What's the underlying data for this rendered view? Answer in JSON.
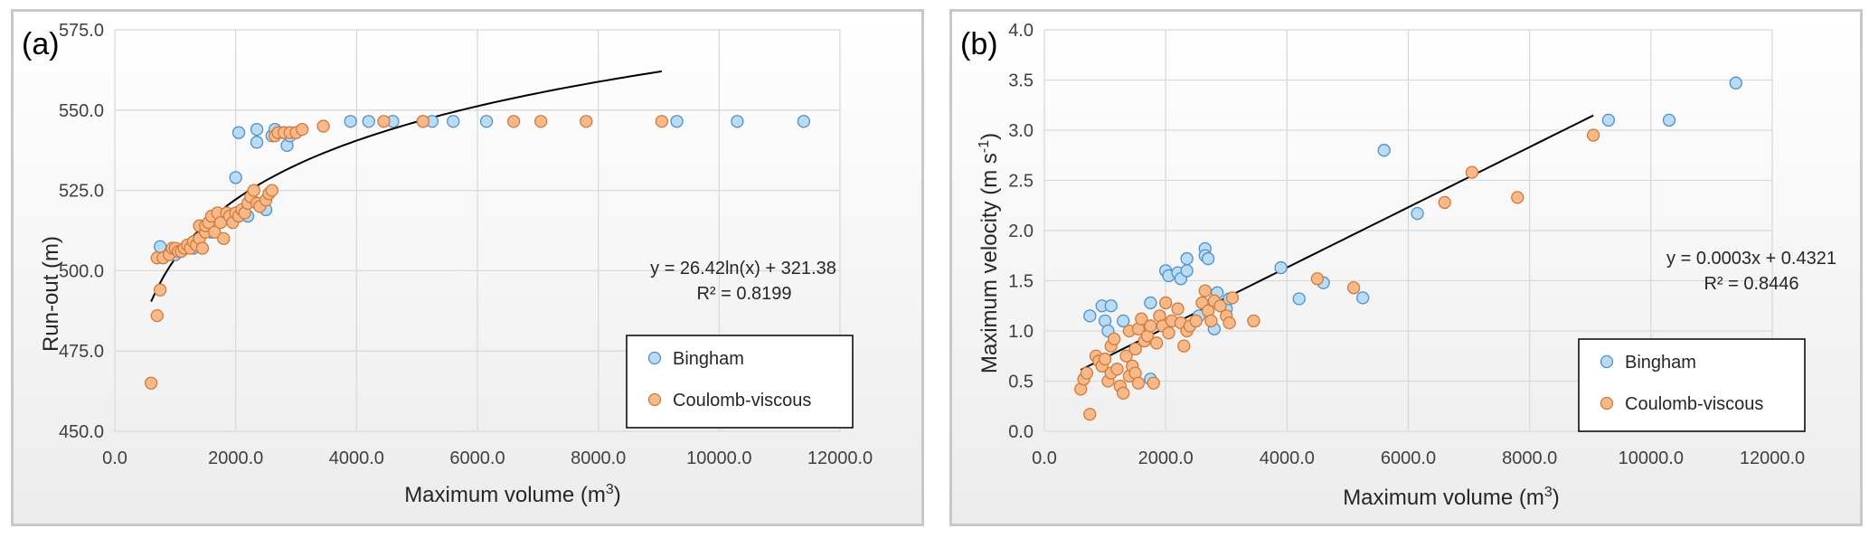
{
  "colors": {
    "bingham_fill": "#b9dcf4",
    "bingham_stroke": "#4f90c8",
    "coulomb_fill": "#f7b98a",
    "coulomb_stroke": "#d07a3a",
    "grid": "#d9d9d9",
    "frame": "#bfbfbf",
    "trend": "#000000"
  },
  "chart_data": [
    {
      "type": "scatter",
      "panel_label": "(a)",
      "xlabel": "Maximum volume (m",
      "xlabel_sup": "3",
      "xlabel_end": ")",
      "ylabel": "Run-out (m)",
      "xlim": [
        0,
        12000
      ],
      "ylim": [
        450,
        575
      ],
      "xticks": [
        0,
        2000,
        4000,
        6000,
        8000,
        10000,
        12000
      ],
      "xtick_labels": [
        "0.0",
        "2000.0",
        "4000.0",
        "6000.0",
        "8000.0",
        "10000.0",
        "12000.0"
      ],
      "yticks": [
        450,
        475,
        500,
        525,
        550,
        575
      ],
      "ytick_labels": [
        "450.0",
        "475.0",
        "500.0",
        "525.0",
        "550.0",
        "575.0"
      ],
      "legend": [
        "Bingham",
        "Coulomb-viscous"
      ],
      "legend_position": "bottom-right",
      "equation": "y = 26.42ln(x) + 321.38",
      "r2": "R² = 0.8199",
      "trendline": {
        "kind": "log",
        "a": 26.42,
        "b": 321.38,
        "x_range": [
          600,
          9050
        ]
      },
      "series": [
        {
          "name": "Bingham",
          "points": [
            [
              750,
              507.5
            ],
            [
              1000,
              505
            ],
            [
              1300,
              507
            ],
            [
              1600,
              512
            ],
            [
              1800,
              516
            ],
            [
              2000,
              529
            ],
            [
              2050,
              543
            ],
            [
              2100,
              518
            ],
            [
              2200,
              517
            ],
            [
              2350,
              540
            ],
            [
              2350,
              544
            ],
            [
              2500,
              519
            ],
            [
              2600,
              542
            ],
            [
              2650,
              544
            ],
            [
              2700,
              543
            ],
            [
              2800,
              543
            ],
            [
              2850,
              539
            ],
            [
              2900,
              542
            ],
            [
              3000,
              543
            ],
            [
              3900,
              546.5
            ],
            [
              4200,
              546.5
            ],
            [
              4600,
              546.5
            ],
            [
              5100,
              546.5
            ],
            [
              5250,
              546.5
            ],
            [
              5600,
              546.5
            ],
            [
              6150,
              546.5
            ],
            [
              9300,
              546.5
            ],
            [
              10300,
              546.5
            ],
            [
              11400,
              546.5
            ]
          ]
        },
        {
          "name": "Coulomb-viscous",
          "points": [
            [
              600,
              465
            ],
            [
              700,
              486
            ],
            [
              700,
              504
            ],
            [
              750,
              494
            ],
            [
              800,
              504
            ],
            [
              900,
              505
            ],
            [
              950,
              507
            ],
            [
              1000,
              507
            ],
            [
              1050,
              506
            ],
            [
              1100,
              506
            ],
            [
              1150,
              507
            ],
            [
              1200,
              508
            ],
            [
              1250,
              507
            ],
            [
              1300,
              509
            ],
            [
              1350,
              508
            ],
            [
              1400,
              514
            ],
            [
              1400,
              510
            ],
            [
              1450,
              507
            ],
            [
              1500,
              512
            ],
            [
              1500,
              514
            ],
            [
              1550,
              515
            ],
            [
              1600,
              517
            ],
            [
              1650,
              512
            ],
            [
              1700,
              518
            ],
            [
              1750,
              515
            ],
            [
              1800,
              510
            ],
            [
              1850,
              518
            ],
            [
              1900,
              517
            ],
            [
              1950,
              515
            ],
            [
              2000,
              518
            ],
            [
              2050,
              517
            ],
            [
              2100,
              519
            ],
            [
              2150,
              518
            ],
            [
              2200,
              521
            ],
            [
              2250,
              523
            ],
            [
              2300,
              525
            ],
            [
              2350,
              521
            ],
            [
              2400,
              520
            ],
            [
              2500,
              522
            ],
            [
              2550,
              524
            ],
            [
              2600,
              525
            ],
            [
              2650,
              542
            ],
            [
              2700,
              543
            ],
            [
              2800,
              543
            ],
            [
              2900,
              543
            ],
            [
              3000,
              543
            ],
            [
              3100,
              544
            ],
            [
              3450,
              545
            ],
            [
              4450,
              546.5
            ],
            [
              5100,
              546.5
            ],
            [
              6600,
              546.5
            ],
            [
              7050,
              546.5
            ],
            [
              7800,
              546.5
            ],
            [
              9050,
              546.5
            ]
          ]
        }
      ]
    },
    {
      "type": "scatter",
      "panel_label": "(b)",
      "xlabel": "Maximum volume (m",
      "xlabel_sup": "3",
      "xlabel_end": ")",
      "ylabel": "Maximum velocity (m s",
      "ylabel_sup": "-1",
      "ylabel_end": ")",
      "xlim": [
        0,
        12000
      ],
      "ylim": [
        0,
        4
      ],
      "xticks": [
        0,
        2000,
        4000,
        6000,
        8000,
        10000,
        12000
      ],
      "xtick_labels": [
        "0.0",
        "2000.0",
        "4000.0",
        "6000.0",
        "8000.0",
        "10000.0",
        "12000.0"
      ],
      "yticks": [
        0,
        0.5,
        1,
        1.5,
        2,
        2.5,
        3,
        3.5,
        4
      ],
      "ytick_labels": [
        "0.0",
        "0.5",
        "1.0",
        "1.5",
        "2.0",
        "2.5",
        "3.0",
        "3.5",
        "4.0"
      ],
      "legend": [
        "Bingham",
        "Coulomb-viscous"
      ],
      "legend_position": "bottom-right",
      "equation": "y = 0.0003x + 0.4321",
      "r2": "R² = 0.8446",
      "trendline": {
        "kind": "linear",
        "a": 0.0003,
        "b": 0.4321,
        "x_range": [
          600,
          9050
        ]
      },
      "series": [
        {
          "name": "Bingham",
          "points": [
            [
              750,
              1.15
            ],
            [
              950,
              1.25
            ],
            [
              1000,
              1.1
            ],
            [
              1050,
              1.0
            ],
            [
              1100,
              1.25
            ],
            [
              1300,
              1.1
            ],
            [
              1750,
              1.28
            ],
            [
              1750,
              0.52
            ],
            [
              2000,
              1.6
            ],
            [
              2050,
              1.55
            ],
            [
              2200,
              1.58
            ],
            [
              2250,
              1.52
            ],
            [
              2350,
              1.72
            ],
            [
              2350,
              1.6
            ],
            [
              2550,
              1.15
            ],
            [
              2650,
              1.82
            ],
            [
              2650,
              1.75
            ],
            [
              2700,
              1.72
            ],
            [
              2800,
              1.02
            ],
            [
              2850,
              1.38
            ],
            [
              3000,
              1.22
            ],
            [
              3050,
              1.32
            ],
            [
              3900,
              1.63
            ],
            [
              4200,
              1.32
            ],
            [
              4600,
              1.48
            ],
            [
              5250,
              1.33
            ],
            [
              5600,
              2.8
            ],
            [
              6150,
              2.17
            ],
            [
              9300,
              3.1
            ],
            [
              10300,
              3.1
            ],
            [
              11400,
              3.47
            ]
          ]
        },
        {
          "name": "Coulomb-viscous",
          "points": [
            [
              600,
              0.42
            ],
            [
              650,
              0.52
            ],
            [
              700,
              0.58
            ],
            [
              750,
              0.17
            ],
            [
              850,
              0.75
            ],
            [
              900,
              0.7
            ],
            [
              950,
              0.65
            ],
            [
              1000,
              0.72
            ],
            [
              1050,
              0.5
            ],
            [
              1100,
              0.85
            ],
            [
              1100,
              0.58
            ],
            [
              1150,
              0.92
            ],
            [
              1200,
              0.62
            ],
            [
              1250,
              0.45
            ],
            [
              1300,
              0.38
            ],
            [
              1350,
              0.75
            ],
            [
              1400,
              0.55
            ],
            [
              1400,
              1.0
            ],
            [
              1450,
              0.65
            ],
            [
              1500,
              0.82
            ],
            [
              1500,
              0.58
            ],
            [
              1550,
              1.02
            ],
            [
              1550,
              0.48
            ],
            [
              1600,
              1.12
            ],
            [
              1650,
              0.9
            ],
            [
              1700,
              0.95
            ],
            [
              1750,
              1.05
            ],
            [
              1800,
              0.48
            ],
            [
              1850,
              0.88
            ],
            [
              1900,
              1.15
            ],
            [
              1950,
              1.05
            ],
            [
              2000,
              1.28
            ],
            [
              2050,
              0.98
            ],
            [
              2100,
              1.1
            ],
            [
              2200,
              1.22
            ],
            [
              2250,
              1.08
            ],
            [
              2300,
              0.85
            ],
            [
              2350,
              1.0
            ],
            [
              2400,
              1.05
            ],
            [
              2500,
              1.1
            ],
            [
              2600,
              1.28
            ],
            [
              2650,
              1.4
            ],
            [
              2700,
              1.2
            ],
            [
              2750,
              1.1
            ],
            [
              2800,
              1.3
            ],
            [
              2900,
              1.25
            ],
            [
              3000,
              1.15
            ],
            [
              3050,
              1.08
            ],
            [
              3100,
              1.33
            ],
            [
              3450,
              1.1
            ],
            [
              4500,
              1.52
            ],
            [
              5100,
              1.43
            ],
            [
              6600,
              2.28
            ],
            [
              7050,
              2.58
            ],
            [
              7800,
              2.33
            ],
            [
              9050,
              2.95
            ]
          ]
        }
      ]
    }
  ]
}
